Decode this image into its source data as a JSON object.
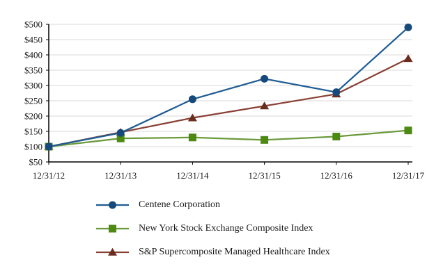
{
  "chart_data": {
    "type": "line",
    "categories": [
      "12/31/12",
      "12/31/13",
      "12/31/14",
      "12/31/15",
      "12/31/16",
      "12/31/17"
    ],
    "series": [
      {
        "name": "Centene Corporation",
        "marker": "circle",
        "line_color": "#1F5C93",
        "marker_color": "#174A7C",
        "values": [
          100,
          145,
          255,
          322,
          278,
          490
        ]
      },
      {
        "name": "New York Stock Exchange Composite Index",
        "marker": "square",
        "line_color": "#6B9A3C",
        "marker_color": "#4C8A12",
        "values": [
          100,
          127,
          130,
          122,
          133,
          153
        ]
      },
      {
        "name": "S&P Supercomposite Managed Healthcare Index",
        "marker": "triangle",
        "line_color": "#8A4135",
        "marker_color": "#6B2D1E",
        "values": [
          100,
          147,
          194,
          233,
          272,
          388
        ]
      }
    ],
    "y_axis": {
      "min": 50,
      "max": 500,
      "step": 50,
      "tick_prefix": "$",
      "tick_labels": [
        "$50",
        "$100",
        "$150",
        "$200",
        "$250",
        "$300",
        "$350",
        "$400",
        "$450",
        "$500"
      ]
    },
    "grid": true,
    "legend_position": "bottom-left",
    "colors": {
      "axis": "#000000",
      "grid": "#D9D9D9",
      "text": "#1A1A1A",
      "background": "#FFFFFF"
    }
  }
}
